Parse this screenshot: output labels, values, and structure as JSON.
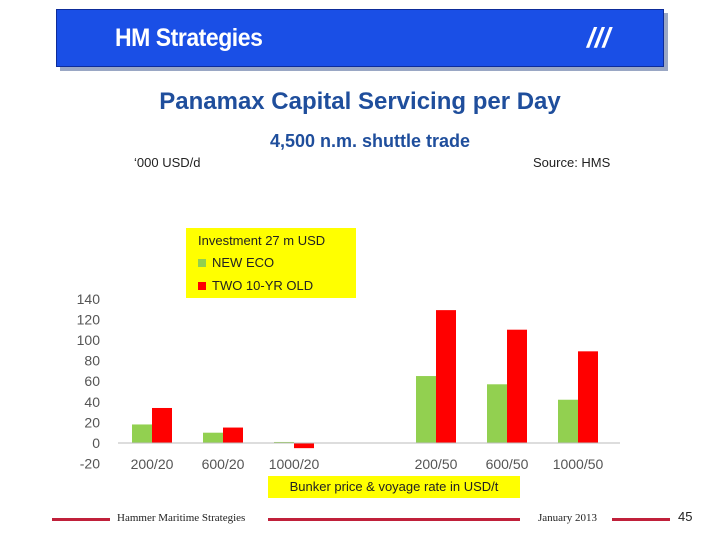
{
  "header": {
    "title": "HM Strategies",
    "slashes": "///"
  },
  "chart_data": {
    "type": "bar",
    "title": "Panamax Capital Servicing per Day",
    "subtitle": "4,500 n.m. shuttle trade",
    "unit_label": "‘000 USD/d",
    "source": "Source: HMS",
    "investment_note": "Investment  27 m USD",
    "categories": [
      "200/20",
      "600/20",
      "1000/20",
      "",
      "200/50",
      "600/50",
      "1000/50"
    ],
    "series": [
      {
        "name": "NEW ECO",
        "color": "#92d050",
        "values": [
          18,
          10,
          1,
          null,
          65,
          57,
          42
        ]
      },
      {
        "name": "TWO 10-YR OLD",
        "color": "#ff0000",
        "values": [
          34,
          15,
          -5,
          null,
          129,
          110,
          89
        ]
      }
    ],
    "ylim": [
      -20,
      140
    ],
    "yticks": [
      -20,
      0,
      20,
      40,
      60,
      80,
      100,
      120,
      140
    ],
    "xlabel": "Bunker price & voyage rate in USD/t",
    "legend_position": "left"
  },
  "footer": {
    "left": "Hammer Maritime Strategies",
    "right": "January 2013",
    "page": "45"
  },
  "colors": {
    "header_bg": "#1a4fe6",
    "title": "#1f4e9c",
    "highlight": "#ffff00",
    "footer_line": "#c0203a"
  }
}
